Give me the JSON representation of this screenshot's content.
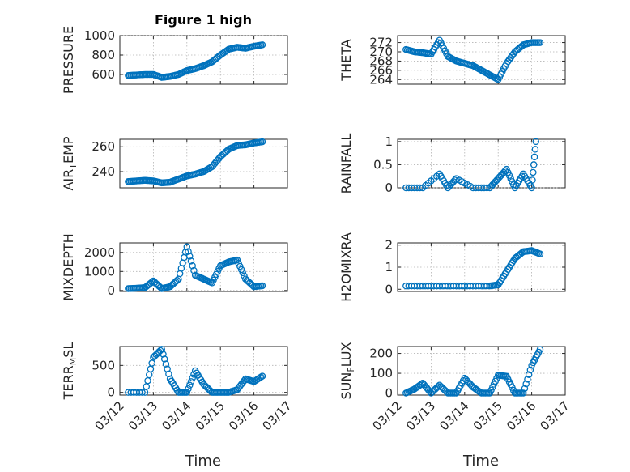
{
  "figure": {
    "title": "Figure 1 high",
    "marker_color": "#0072bd"
  },
  "x_title": "Time",
  "x_ticks": [
    "03/12",
    "03/13",
    "03/14",
    "03/15",
    "03/16",
    "03/17"
  ],
  "chart_data": [
    {
      "type": "scatter",
      "title": "Figure 1 high",
      "ylabel": "PRESSURE",
      "ylim": [
        500,
        1000
      ],
      "yticks": [
        "600",
        "800",
        "1000"
      ],
      "grid": true,
      "series": [
        {
          "x": [
            "03/12 06:00",
            "03/12 12:00",
            "03/12 18:00",
            "03/13 00:00",
            "03/13 06:00",
            "03/13 12:00",
            "03/13 18:00",
            "03/14 00:00",
            "03/14 06:00",
            "03/14 12:00",
            "03/14 18:00",
            "03/15 00:00",
            "03/15 06:00",
            "03/15 12:00",
            "03/15 18:00",
            "03/16 00:00",
            "03/16 06:00"
          ],
          "y": [
            590,
            595,
            600,
            600,
            570,
            580,
            600,
            640,
            660,
            690,
            730,
            800,
            860,
            880,
            870,
            890,
            905
          ]
        }
      ]
    },
    {
      "type": "scatter",
      "ylabel": "THETA",
      "ylim": [
        263,
        273.5
      ],
      "yticks": [
        "264",
        "266",
        "268",
        "270",
        "272"
      ],
      "grid": true,
      "series": [
        {
          "x": [
            "03/12 06:00",
            "03/12 12:00",
            "03/12 18:00",
            "03/13 00:00",
            "03/13 06:00",
            "03/13 12:00",
            "03/13 18:00",
            "03/14 00:00",
            "03/14 06:00",
            "03/14 12:00",
            "03/14 18:00",
            "03/15 00:00",
            "03/15 06:00",
            "03/15 12:00",
            "03/15 18:00",
            "03/16 00:00",
            "03/16 06:00"
          ],
          "y": [
            270.5,
            270,
            269.8,
            269.5,
            272.5,
            269,
            268,
            267.5,
            267,
            266,
            265,
            264,
            267.5,
            270,
            271.5,
            272,
            272
          ]
        }
      ]
    },
    {
      "type": "scatter",
      "ylabel": "AIR_TEMP",
      "ylim": [
        227,
        266
      ],
      "yticks": [
        "240",
        "260"
      ],
      "grid": true,
      "series": [
        {
          "x": [
            "03/12 06:00",
            "03/12 12:00",
            "03/12 18:00",
            "03/13 00:00",
            "03/13 06:00",
            "03/13 12:00",
            "03/13 18:00",
            "03/14 00:00",
            "03/14 06:00",
            "03/14 12:00",
            "03/14 18:00",
            "03/15 00:00",
            "03/15 06:00",
            "03/15 12:00",
            "03/15 18:00",
            "03/16 00:00",
            "03/16 06:00"
          ],
          "y": [
            232,
            232.5,
            233,
            232.5,
            231,
            231.5,
            234,
            236.5,
            238,
            240,
            244,
            252,
            258,
            261,
            261.5,
            263,
            264
          ]
        }
      ]
    },
    {
      "type": "scatter",
      "ylabel": "RAINFALL",
      "ylim": [
        0,
        1.05
      ],
      "yticks": [
        "0",
        "0.5",
        "1"
      ],
      "grid": true,
      "series": [
        {
          "x": [
            "03/12 06:00",
            "03/12 18:00",
            "03/13 06:00",
            "03/13 12:00",
            "03/13 18:00",
            "03/14 06:00",
            "03/14 18:00",
            "03/15 00:00",
            "03/15 06:00",
            "03/15 12:00",
            "03/15 18:00",
            "03/16 00:00",
            "03/16 03:00"
          ],
          "y": [
            0,
            0,
            0.3,
            0,
            0.2,
            0,
            0,
            0.2,
            0.4,
            0,
            0.3,
            0,
            1.0
          ]
        }
      ]
    },
    {
      "type": "scatter",
      "ylabel": "MIXDEPTH",
      "ylim": [
        -50,
        2500
      ],
      "yticks": [
        "0",
        "1000",
        "2000"
      ],
      "grid": true,
      "series": [
        {
          "x": [
            "03/12 06:00",
            "03/12 12:00",
            "03/12 18:00",
            "03/13 00:00",
            "03/13 06:00",
            "03/13 12:00",
            "03/13 18:00",
            "03/14 00:00",
            "03/14 06:00",
            "03/14 12:00",
            "03/14 18:00",
            "03/15 00:00",
            "03/15 06:00",
            "03/15 12:00",
            "03/15 18:00",
            "03/16 00:00",
            "03/16 06:00"
          ],
          "y": [
            100,
            120,
            150,
            500,
            100,
            200,
            600,
            2300,
            800,
            600,
            400,
            1300,
            1500,
            1600,
            600,
            200,
            250
          ]
        }
      ]
    },
    {
      "type": "scatter",
      "ylabel": "H2OMIXRA",
      "ylim": [
        -0.1,
        2.1
      ],
      "yticks": [
        "0",
        "1",
        "2"
      ],
      "grid": true,
      "series": [
        {
          "x": [
            "03/12 06:00",
            "03/12 18:00",
            "03/13 06:00",
            "03/13 18:00",
            "03/14 06:00",
            "03/14 18:00",
            "03/15 00:00",
            "03/15 06:00",
            "03/15 12:00",
            "03/15 18:00",
            "03/16 00:00",
            "03/16 06:00"
          ],
          "y": [
            0.15,
            0.15,
            0.15,
            0.15,
            0.15,
            0.15,
            0.2,
            0.8,
            1.4,
            1.7,
            1.75,
            1.6
          ]
        }
      ]
    },
    {
      "type": "scatter",
      "ylabel": "TERR_MSL",
      "ylim": [
        -50,
        850
      ],
      "yticks": [
        "0",
        "500"
      ],
      "grid": true,
      "series": [
        {
          "x": [
            "03/12 06:00",
            "03/12 18:00",
            "03/13 00:00",
            "03/13 06:00",
            "03/13 12:00",
            "03/13 18:00",
            "03/14 00:00",
            "03/14 06:00",
            "03/14 12:00",
            "03/14 18:00",
            "03/15 00:00",
            "03/15 06:00",
            "03/15 12:00",
            "03/15 18:00",
            "03/16 00:00",
            "03/16 06:00"
          ],
          "y": [
            0,
            0,
            650,
            800,
            250,
            0,
            0,
            400,
            150,
            0,
            0,
            0,
            50,
            250,
            200,
            300
          ]
        }
      ]
    },
    {
      "type": "scatter",
      "ylabel": "SUN_FLUX",
      "ylim": [
        -10,
        235
      ],
      "yticks": [
        "0",
        "100",
        "200"
      ],
      "grid": true,
      "series": [
        {
          "x": [
            "03/12 06:00",
            "03/12 12:00",
            "03/12 18:00",
            "03/13 00:00",
            "03/13 06:00",
            "03/13 12:00",
            "03/13 18:00",
            "03/14 00:00",
            "03/14 06:00",
            "03/14 12:00",
            "03/14 18:00",
            "03/15 00:00",
            "03/15 06:00",
            "03/15 12:00",
            "03/15 18:00",
            "03/16 00:00",
            "03/16 06:00"
          ],
          "y": [
            0,
            20,
            50,
            0,
            40,
            0,
            0,
            75,
            30,
            0,
            0,
            90,
            85,
            0,
            0,
            140,
            220
          ]
        }
      ]
    }
  ]
}
